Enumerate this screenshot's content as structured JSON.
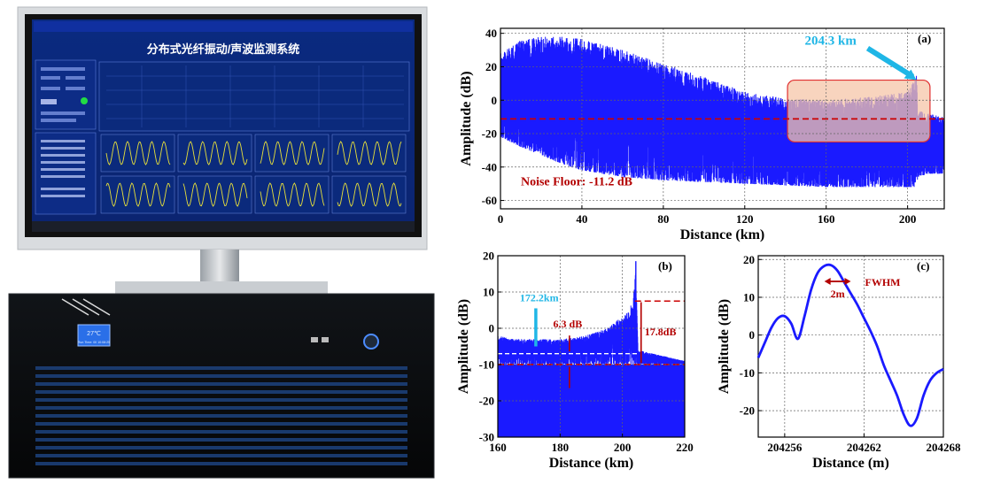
{
  "monitor": {
    "screen_title": "分布式光纤振动/声波监测系统",
    "lcd_temp": "27℃",
    "lcd_runtime": "Run Time: 00 10:08:25"
  },
  "colors": {
    "trace": "#1a1aff",
    "noise_floor": "#cc0000",
    "highlight": "#f5c6a8",
    "cyan": "#1fb6e6",
    "dark_red": "#b30000"
  },
  "chart_data": [
    {
      "id": "a",
      "type": "area",
      "panel_label": "(a)",
      "xlabel": "Distance (km)",
      "ylabel": "Amplitude (dB)",
      "xlim": [
        0,
        218
      ],
      "ylim": [
        -65,
        43
      ],
      "xticks": [
        0,
        40,
        80,
        120,
        160,
        200
      ],
      "yticks": [
        40,
        20,
        0,
        -20,
        -40,
        -60
      ],
      "grid": true,
      "series": [
        {
          "x": [
            0,
            10,
            20,
            30,
            40,
            60,
            80,
            100,
            120,
            140,
            160,
            180,
            195,
            200,
            203.5,
            204.3,
            205,
            210,
            218
          ],
          "upper": [
            28,
            36,
            38,
            38,
            37,
            30,
            22,
            14,
            5,
            1,
            0,
            2,
            4,
            6,
            12,
            18,
            -6,
            -8,
            -10
          ],
          "lower": [
            -22,
            -28,
            -33,
            -38,
            -42,
            -46,
            -48,
            -49,
            -50,
            -51,
            -52,
            -52,
            -52,
            -52,
            -52,
            -52,
            -46,
            -44,
            -44
          ]
        }
      ],
      "noise_floor": -11.2,
      "annotations": {
        "noise_label": "Noise Floor: -11.2 dB",
        "end_label": "204.3 km",
        "end_x": 204.3
      },
      "highlight_region": {
        "x": [
          141,
          211
        ],
        "y": [
          -25,
          12
        ]
      }
    },
    {
      "id": "b",
      "type": "area",
      "panel_label": "(b)",
      "xlabel": "Distance (km)",
      "ylabel": "Amplitude (dB)",
      "xlim": [
        160,
        220
      ],
      "ylim": [
        -30,
        20
      ],
      "xticks": [
        160,
        180,
        200,
        220
      ],
      "yticks": [
        20,
        10,
        0,
        -10,
        -20,
        -30
      ],
      "grid": true,
      "series": [
        {
          "x": [
            160,
            165,
            170,
            175,
            180,
            185,
            190,
            195,
            198,
            200,
            202,
            203.5,
            204.3,
            205,
            210,
            215,
            220
          ],
          "upper": [
            -2,
            -3,
            -3,
            -3,
            -3,
            -2.5,
            -1.5,
            0,
            2,
            3,
            5,
            8,
            18,
            -6,
            -7,
            -8,
            -9
          ],
          "lower": [
            -10,
            -10,
            -10,
            -10,
            -10,
            -10,
            -10,
            -10,
            -10,
            -10,
            -10,
            -10,
            -10,
            -10,
            -10,
            -10,
            -10
          ]
        }
      ],
      "noise_floor": -10,
      "reference_lines": [
        -7,
        7.5
      ],
      "annotations": {
        "marker_label": "172.2km",
        "marker_x": 172.2,
        "snr_label": "6.3 dB",
        "snr_x": 183,
        "peak_label": "17.8dB",
        "peak_x": 206
      }
    },
    {
      "id": "c",
      "type": "line",
      "panel_label": "(c)",
      "xlabel": "Distance (m)",
      "ylabel": "Amplitude (dB)",
      "xlim": [
        204254,
        204268
      ],
      "ylim": [
        -27,
        21
      ],
      "xticks": [
        204256,
        204262,
        204268
      ],
      "yticks": [
        20,
        10,
        0,
        -10,
        -20
      ],
      "grid": true,
      "series": [
        {
          "x": [
            204254,
            204254.5,
            204255,
            204255.5,
            204256,
            204256.5,
            204257,
            204257.5,
            204258,
            204258.5,
            204259,
            204259.5,
            204260,
            204260.5,
            204261,
            204261.5,
            204262,
            204262.5,
            204263,
            204263.5,
            204264,
            204264.5,
            204265,
            204265.5,
            204266,
            204266.5,
            204267,
            204267.5,
            204268
          ],
          "y": [
            -6,
            -2,
            2,
            4.5,
            5,
            3,
            -1,
            5,
            12,
            16.5,
            18.3,
            18.5,
            17,
            14,
            11,
            8,
            4.5,
            1,
            -3,
            -8,
            -12,
            -16,
            -21,
            -24,
            -22,
            -16,
            -12,
            -10,
            -9
          ]
        }
      ],
      "annotations": {
        "width_label": "2m",
        "fwhm_label": "FWHM",
        "width_x": [
          204259,
          204261
        ]
      }
    }
  ]
}
